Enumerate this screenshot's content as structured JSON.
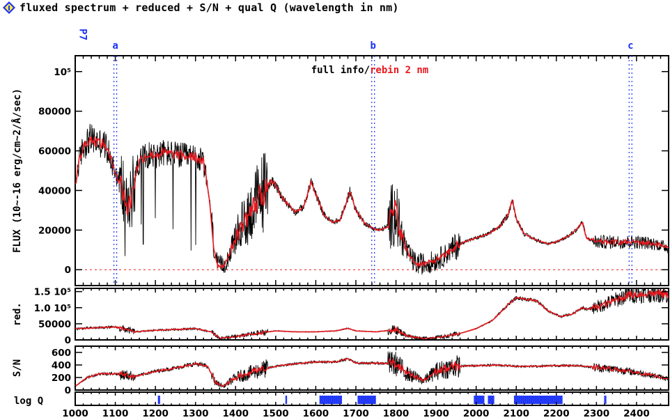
{
  "header": {
    "title": "fluxed spectrum + reduced + S/N + qual Q (wavelength in nm)",
    "icon": "info-icon"
  },
  "chart_data": {
    "type": "line",
    "x_range": [
      1000,
      2480
    ],
    "x_ticks": [
      1000,
      1100,
      1200,
      1300,
      1400,
      1500,
      1600,
      1700,
      1800,
      1900,
      2000,
      2100,
      2200,
      2300,
      2400
    ],
    "x_tick_labels": [
      "1000",
      "1100",
      "1200",
      "1300",
      "1400",
      "1500",
      "1600",
      "1700",
      "1800",
      "1900",
      "2000",
      "2100",
      "2200",
      "2300",
      "2400"
    ],
    "colors": {
      "full": "#000000",
      "rebin": "#e8181d",
      "marker": "#1b32f5",
      "zero": "#e8181d"
    },
    "legend": {
      "full_label": "full info",
      "separator": "/",
      "rebin_label": "rebin 2 nm",
      "placement": "top-center"
    },
    "markers": [
      {
        "label": "P7",
        "wavelength": 1003
      },
      {
        "label": "a",
        "wavelength": 1100
      },
      {
        "label": "b",
        "wavelength": 1743
      },
      {
        "label": "c",
        "wavelength": 2385
      }
    ],
    "panels": {
      "flux": {
        "ylabel": "FLUX (10~-16 erg/cm~2/Å/sec)",
        "ylim": [
          -8000,
          108000
        ],
        "y_tick_values": [
          0,
          20000,
          40000,
          60000,
          80000,
          100000
        ],
        "y_tick_labels": [
          "0",
          "20000",
          "40000",
          "60000",
          "80000",
          "10⁵"
        ],
        "zero_line": true,
        "rebin_points": [
          [
            1000,
            43000
          ],
          [
            1010,
            55000
          ],
          [
            1020,
            62000
          ],
          [
            1035,
            66000
          ],
          [
            1050,
            65000
          ],
          [
            1075,
            63000
          ],
          [
            1090,
            55000
          ],
          [
            1100,
            50000
          ],
          [
            1110,
            44000
          ],
          [
            1120,
            40000
          ],
          [
            1130,
            30000
          ],
          [
            1140,
            36000
          ],
          [
            1150,
            48000
          ],
          [
            1160,
            55000
          ],
          [
            1180,
            58000
          ],
          [
            1200,
            58000
          ],
          [
            1220,
            59000
          ],
          [
            1250,
            58000
          ],
          [
            1280,
            57000
          ],
          [
            1300,
            57000
          ],
          [
            1320,
            54000
          ],
          [
            1335,
            35000
          ],
          [
            1345,
            12000
          ],
          [
            1355,
            2000
          ],
          [
            1370,
            2000
          ],
          [
            1385,
            8000
          ],
          [
            1400,
            16000
          ],
          [
            1420,
            24000
          ],
          [
            1440,
            30000
          ],
          [
            1460,
            37000
          ],
          [
            1480,
            42000
          ],
          [
            1490,
            45000
          ],
          [
            1500,
            43000
          ],
          [
            1510,
            38000
          ],
          [
            1530,
            33000
          ],
          [
            1550,
            29000
          ],
          [
            1570,
            32000
          ],
          [
            1580,
            38000
          ],
          [
            1588,
            45000
          ],
          [
            1600,
            38000
          ],
          [
            1620,
            28000
          ],
          [
            1640,
            24000
          ],
          [
            1660,
            25000
          ],
          [
            1675,
            33000
          ],
          [
            1685,
            40000
          ],
          [
            1700,
            30000
          ],
          [
            1720,
            24000
          ],
          [
            1740,
            21000
          ],
          [
            1760,
            20000
          ],
          [
            1780,
            22000
          ],
          [
            1790,
            28000
          ],
          [
            1800,
            30000
          ],
          [
            1810,
            20000
          ],
          [
            1830,
            8000
          ],
          [
            1850,
            3000
          ],
          [
            1870,
            3000
          ],
          [
            1890,
            4000
          ],
          [
            1920,
            7000
          ],
          [
            1950,
            12000
          ],
          [
            1970,
            14000
          ],
          [
            2000,
            16000
          ],
          [
            2030,
            18000
          ],
          [
            2060,
            22000
          ],
          [
            2080,
            28000
          ],
          [
            2090,
            35000
          ],
          [
            2100,
            26000
          ],
          [
            2120,
            18000
          ],
          [
            2150,
            15000
          ],
          [
            2180,
            13000
          ],
          [
            2200,
            14000
          ],
          [
            2230,
            17000
          ],
          [
            2250,
            20000
          ],
          [
            2265,
            24000
          ],
          [
            2275,
            16000
          ],
          [
            2300,
            14000
          ],
          [
            2350,
            14000
          ],
          [
            2400,
            14000
          ],
          [
            2450,
            13000
          ],
          [
            2480,
            11000
          ]
        ]
      },
      "reduced": {
        "ylabel": "red.",
        "ylim": [
          0,
          160000
        ],
        "y_tick_values": [
          0,
          50000,
          100000,
          150000
        ],
        "y_tick_labels": [
          "0",
          "50000",
          "1.0 10⁵",
          "1.5 10⁵"
        ],
        "rebin_points": [
          [
            1000,
            35000
          ],
          [
            1100,
            40000
          ],
          [
            1150,
            25000
          ],
          [
            1200,
            30000
          ],
          [
            1300,
            35000
          ],
          [
            1340,
            25000
          ],
          [
            1360,
            5000
          ],
          [
            1400,
            10000
          ],
          [
            1450,
            20000
          ],
          [
            1500,
            28000
          ],
          [
            1550,
            25000
          ],
          [
            1600,
            25000
          ],
          [
            1650,
            28000
          ],
          [
            1680,
            36000
          ],
          [
            1700,
            28000
          ],
          [
            1750,
            25000
          ],
          [
            1800,
            32000
          ],
          [
            1830,
            12000
          ],
          [
            1870,
            4000
          ],
          [
            1920,
            10000
          ],
          [
            1960,
            20000
          ],
          [
            2000,
            35000
          ],
          [
            2040,
            60000
          ],
          [
            2080,
            110000
          ],
          [
            2100,
            130000
          ],
          [
            2150,
            122000
          ],
          [
            2180,
            90000
          ],
          [
            2210,
            72000
          ],
          [
            2240,
            80000
          ],
          [
            2265,
            100000
          ],
          [
            2280,
            95000
          ],
          [
            2320,
            110000
          ],
          [
            2380,
            140000
          ],
          [
            2450,
            145000
          ],
          [
            2480,
            140000
          ]
        ]
      },
      "snr": {
        "ylabel": "S/N",
        "ylim": [
          0,
          700
        ],
        "y_tick_values": [
          0,
          200,
          400,
          600
        ],
        "y_tick_labels": [
          "0",
          "200",
          "400",
          "600"
        ],
        "rebin_points": [
          [
            1000,
            60
          ],
          [
            1030,
            200
          ],
          [
            1060,
            260
          ],
          [
            1100,
            260
          ],
          [
            1150,
            220
          ],
          [
            1200,
            300
          ],
          [
            1250,
            350
          ],
          [
            1300,
            420
          ],
          [
            1330,
            380
          ],
          [
            1350,
            120
          ],
          [
            1370,
            60
          ],
          [
            1400,
            200
          ],
          [
            1450,
            300
          ],
          [
            1500,
            380
          ],
          [
            1550,
            420
          ],
          [
            1600,
            450
          ],
          [
            1650,
            450
          ],
          [
            1680,
            500
          ],
          [
            1700,
            430
          ],
          [
            1750,
            430
          ],
          [
            1800,
            420
          ],
          [
            1830,
            250
          ],
          [
            1870,
            150
          ],
          [
            1900,
            300
          ],
          [
            1950,
            380
          ],
          [
            2000,
            390
          ],
          [
            2050,
            400
          ],
          [
            2100,
            380
          ],
          [
            2150,
            380
          ],
          [
            2200,
            390
          ],
          [
            2250,
            390
          ],
          [
            2300,
            360
          ],
          [
            2350,
            330
          ],
          [
            2400,
            280
          ],
          [
            2450,
            220
          ],
          [
            2480,
            180
          ]
        ]
      },
      "logq": {
        "ylabel": "log Q",
        "q_flags": [
          [
            1207,
            1212
          ],
          [
            1525,
            1528
          ],
          [
            1610,
            1665
          ],
          [
            1705,
            1750
          ],
          [
            1995,
            2020
          ],
          [
            2030,
            2045
          ],
          [
            2095,
            2215
          ],
          [
            2320,
            2325
          ]
        ]
      }
    }
  }
}
